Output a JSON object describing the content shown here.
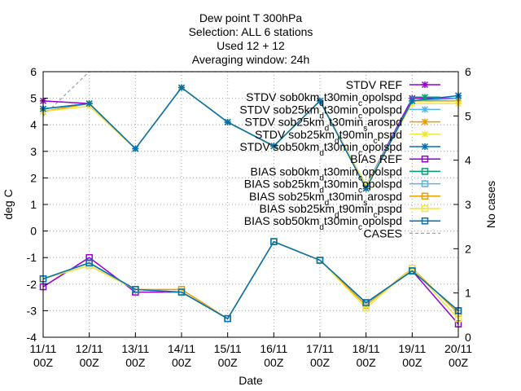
{
  "chart_data": {
    "type": "line",
    "title_lines": [
      "Dew point T 300hPa",
      "Selection: ALL      6 stations",
      "Used 12 + 12",
      "Averaging window: 24h"
    ],
    "xlabel": "Date",
    "ylabel": "deg C",
    "y2label": "No cases",
    "ylim": [
      -4,
      6
    ],
    "y2lim": [
      0,
      6
    ],
    "yticks": [
      -4,
      -3,
      -2,
      -1,
      0,
      1,
      2,
      3,
      4,
      5,
      6
    ],
    "y2ticks": [
      0,
      1,
      2,
      3,
      4,
      5,
      6
    ],
    "categories": [
      "11/11 00Z",
      "12/11 00Z",
      "13/11 00Z",
      "14/11 00Z",
      "15/11 00Z",
      "16/11 00Z",
      "17/11 00Z",
      "18/11 00Z",
      "19/11 00Z",
      "20/11 00Z"
    ],
    "grid": true,
    "legend_position": "top-right",
    "series": [
      {
        "name": "STDV REF",
        "legend": [
          [
            "STDV REF",
            ""
          ]
        ],
        "color": "#9400d3",
        "marker": "star",
        "axis": "y",
        "values": [
          4.9,
          4.8,
          3.1,
          5.4,
          4.1,
          3.2,
          4.9,
          1.7,
          5.0,
          5.0
        ]
      },
      {
        "name": "STDV sob0km_d t30min_c opolspd",
        "legend": [
          [
            "STDV sob0km",
            ""
          ],
          [
            "d",
            "sub"
          ],
          [
            "t30min",
            ""
          ],
          [
            "c",
            "sub"
          ],
          [
            "opolspd",
            ""
          ]
        ],
        "color": "#009e73",
        "marker": "star",
        "axis": "y",
        "values": [
          4.6,
          4.8,
          3.1,
          5.4,
          4.1,
          3.2,
          4.9,
          1.7,
          4.9,
          5.0
        ]
      },
      {
        "name": "STDV sob25km_d t30min_c opolspd",
        "legend": [
          [
            "STDV sob25km",
            ""
          ],
          [
            "d",
            "sub"
          ],
          [
            "t30min",
            ""
          ],
          [
            "c",
            "sub"
          ],
          [
            "opolspd",
            ""
          ]
        ],
        "color": "#56b4e9",
        "marker": "star",
        "axis": "y",
        "values": [
          4.6,
          4.8,
          3.1,
          5.4,
          4.1,
          3.2,
          4.9,
          1.7,
          4.9,
          5.0
        ]
      },
      {
        "name": "STDV sob25km_d t30min_s arospd",
        "legend": [
          [
            "STDV sob25km",
            ""
          ],
          [
            "d",
            "sub"
          ],
          [
            "t30min",
            ""
          ],
          [
            "s",
            "sub"
          ],
          [
            "arospd",
            ""
          ]
        ],
        "color": "#e69f00",
        "marker": "star",
        "axis": "y",
        "values": [
          4.5,
          4.8,
          3.1,
          5.4,
          4.1,
          3.2,
          4.9,
          1.6,
          4.9,
          4.9
        ]
      },
      {
        "name": "STDV sob25km_d t90min_c pspd",
        "legend": [
          [
            "STDV sob25km",
            ""
          ],
          [
            "d",
            "sub"
          ],
          [
            "t90min",
            ""
          ],
          [
            "c",
            "sub"
          ],
          [
            "pspd",
            ""
          ]
        ],
        "color": "#f0e442",
        "marker": "star",
        "axis": "y",
        "values": [
          4.5,
          4.7,
          3.1,
          5.4,
          4.1,
          3.2,
          4.9,
          1.7,
          4.8,
          4.8
        ]
      },
      {
        "name": "STDV sob50km_d t30min_c opolspd",
        "legend": [
          [
            "STDV sob50km",
            ""
          ],
          [
            "d",
            "sub"
          ],
          [
            "t30min",
            ""
          ],
          [
            "c",
            "sub"
          ],
          [
            "opolspd",
            ""
          ]
        ],
        "color": "#0072b2",
        "marker": "star",
        "axis": "y",
        "values": [
          4.6,
          4.8,
          3.1,
          5.4,
          4.1,
          3.2,
          4.9,
          1.6,
          4.9,
          5.1
        ]
      },
      {
        "name": "BIAS REF",
        "legend": [
          [
            "BIAS REF",
            ""
          ]
        ],
        "color": "#9400d3",
        "marker": "square",
        "axis": "y",
        "values": [
          -2.1,
          -1.0,
          -2.3,
          -2.3,
          -3.3,
          -0.4,
          -1.1,
          -2.7,
          -1.5,
          -3.5
        ]
      },
      {
        "name": "BIAS sob0km_d t30min_c opolspd",
        "legend": [
          [
            "BIAS sob0km",
            ""
          ],
          [
            "d",
            "sub"
          ],
          [
            "t30min",
            ""
          ],
          [
            "c",
            "sub"
          ],
          [
            "opolspd",
            ""
          ]
        ],
        "color": "#009e73",
        "marker": "square",
        "axis": "y",
        "values": [
          -1.8,
          -1.2,
          -2.2,
          -2.3,
          -3.3,
          -0.4,
          -1.1,
          -2.7,
          -1.5,
          -3.0
        ]
      },
      {
        "name": "BIAS sob25km_d t30min_c opolspd",
        "legend": [
          [
            "BIAS sob25km",
            ""
          ],
          [
            "d",
            "sub"
          ],
          [
            "t30min",
            ""
          ],
          [
            "c",
            "sub"
          ],
          [
            "opolspd",
            ""
          ]
        ],
        "color": "#56b4e9",
        "marker": "square",
        "axis": "y",
        "values": [
          -1.8,
          -1.2,
          -2.2,
          -2.3,
          -3.3,
          -0.4,
          -1.1,
          -2.7,
          -1.5,
          -3.0
        ]
      },
      {
        "name": "BIAS sob25km_d t30min_s arospd",
        "legend": [
          [
            "BIAS sob25km",
            ""
          ],
          [
            "d",
            "sub"
          ],
          [
            "t30min",
            ""
          ],
          [
            "s",
            "sub"
          ],
          [
            "arospd",
            ""
          ]
        ],
        "color": "#e69f00",
        "marker": "square",
        "axis": "y",
        "values": [
          -1.8,
          -1.3,
          -2.2,
          -2.2,
          -3.3,
          -0.4,
          -1.1,
          -2.8,
          -1.4,
          -3.1
        ]
      },
      {
        "name": "BIAS sob25km_d t90min_c pspd",
        "legend": [
          [
            "BIAS sob25km",
            ""
          ],
          [
            "d",
            "sub"
          ],
          [
            "t90min",
            ""
          ],
          [
            "c",
            "sub"
          ],
          [
            "pspd",
            ""
          ]
        ],
        "color": "#f0e442",
        "marker": "square",
        "axis": "y",
        "values": [
          -1.8,
          -1.3,
          -2.2,
          -2.3,
          -3.3,
          -0.4,
          -1.1,
          -2.9,
          -1.4,
          -3.3
        ]
      },
      {
        "name": "BIAS sob50km_d t30min_c opolspd",
        "legend": [
          [
            "BIAS sob50km",
            ""
          ],
          [
            "d",
            "sub"
          ],
          [
            "t30min",
            ""
          ],
          [
            "c",
            "sub"
          ],
          [
            "opolspd",
            ""
          ]
        ],
        "color": "#0072b2",
        "marker": "square",
        "axis": "y",
        "values": [
          -1.8,
          -1.2,
          -2.2,
          -2.3,
          -3.3,
          -0.4,
          -1.1,
          -2.7,
          -1.5,
          -3.0
        ]
      },
      {
        "name": "CASES",
        "legend": [
          [
            "CASES",
            ""
          ]
        ],
        "color": "#a0a0a0",
        "marker": "none",
        "dashed": true,
        "axis": "y2",
        "values": [
          5,
          6,
          6,
          6,
          6,
          6,
          6,
          6,
          6,
          6
        ]
      }
    ]
  }
}
